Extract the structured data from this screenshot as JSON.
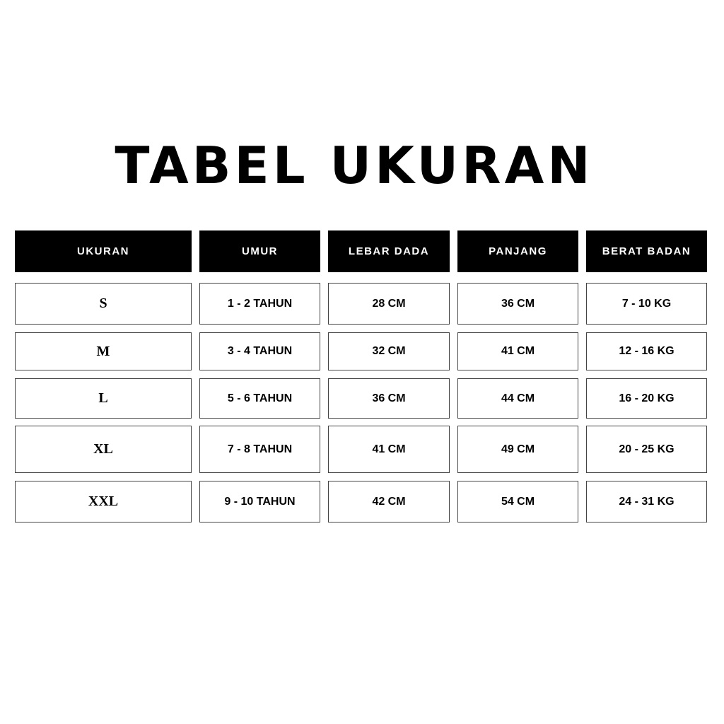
{
  "title": "TABEL UKURAN",
  "headers": [
    "UKURAN",
    "UMUR",
    "LEBAR DADA",
    "PANJANG",
    "BERAT BADAN"
  ],
  "rows": [
    [
      "S",
      "1 - 2 TAHUN",
      "28 CM",
      "36 CM",
      "7 - 10 KG"
    ],
    [
      "M",
      "3 - 4 TAHUN",
      "32 CM",
      "41 CM",
      "12 - 16 KG"
    ],
    [
      "L",
      "5 - 6 TAHUN",
      "36 CM",
      "44 CM",
      "16 - 20 KG"
    ],
    [
      "XL",
      "7 - 8 TAHUN",
      "41 CM",
      "49 CM",
      "20 - 25 KG"
    ],
    [
      "XXL",
      "9 - 10 TAHUN",
      "42 CM",
      "54 CM",
      "24 - 31 KG"
    ]
  ]
}
